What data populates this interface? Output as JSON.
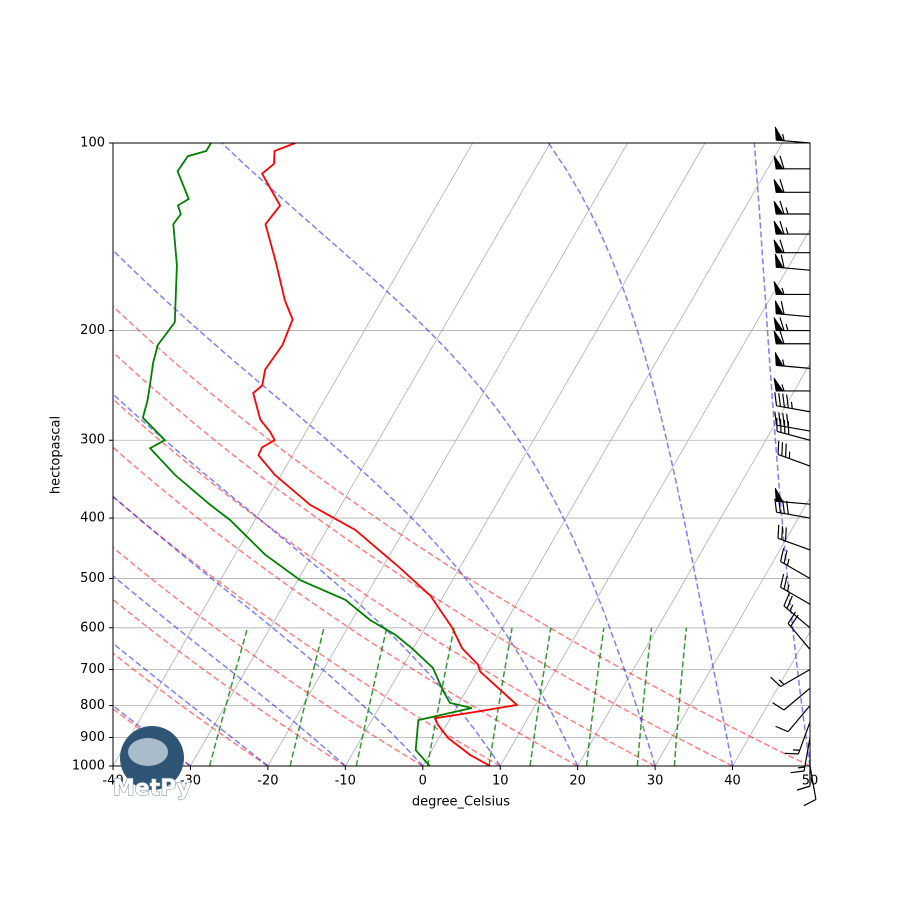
{
  "chart_data": {
    "type": "skewt",
    "xlabel": "degree_Celsius",
    "ylabel": "hectopascal",
    "xlim": [
      -40,
      50
    ],
    "xticks": [
      -40,
      -30,
      -20,
      -10,
      0,
      10,
      20,
      30,
      40,
      50
    ],
    "ylim": [
      1000,
      100
    ],
    "yticks": [
      100,
      200,
      300,
      400,
      500,
      600,
      700,
      800,
      900,
      1000
    ],
    "log_scale": true,
    "grid": true,
    "logo_text": "MetPy",
    "series": [
      {
        "color": "#ff0000",
        "pressure": [
          1000,
          960,
          902,
          859,
          838,
          819,
          798,
          706,
          688,
          647,
          600,
          533,
          481,
          418,
          381,
          341,
          317,
          308,
          300,
          291,
          278,
          252,
          245,
          231,
          211,
          192,
          179,
          155,
          135,
          126,
          112,
          108,
          103,
          100
        ],
        "values": [
          8.7,
          5.3,
          1.2,
          -1.1,
          -2.0,
          2.7,
          7.6,
          0.4,
          -0.4,
          -3.7,
          -6.5,
          -11.7,
          -17.7,
          -26.3,
          -34.0,
          -40.8,
          -44.4,
          -44.5,
          -43.4,
          -44.6,
          -46.8,
          -49.7,
          -49.1,
          -49.9,
          -49.5,
          -50.1,
          -52.5,
          -56.6,
          -60.7,
          -60.2,
          -64.9,
          -64.1,
          -65.0,
          -62.9
        ]
      },
      {
        "color": "#008000",
        "pressure": [
          1000,
          943,
          844,
          807,
          792,
          755,
          696,
          647,
          616,
          583,
          541,
          503,
          458,
          403,
          381,
          341,
          309,
          300,
          289,
          276,
          259,
          245,
          225,
          211,
          194,
          157,
          135,
          130,
          126,
          123,
          111,
          105,
          103,
          100
        ],
        "values": [
          0.9,
          -2.1,
          -4.0,
          2.0,
          -1.2,
          -3.1,
          -6.0,
          -10.2,
          -13.3,
          -17.7,
          -22.4,
          -29.7,
          -36.1,
          -43.2,
          -46.9,
          -53.7,
          -58.9,
          -57.6,
          -59.6,
          -62.1,
          -62.8,
          -63.6,
          -64.9,
          -65.6,
          -65.1,
          -69.1,
          -72.6,
          -72.4,
          -73.4,
          -72.5,
          -76.0,
          -75.8,
          -73.8,
          -73.8
        ]
      }
    ],
    "wind": {
      "pressure": [
        100,
        110,
        120,
        130,
        140,
        150,
        160,
        175,
        190,
        200,
        210,
        230,
        250,
        270,
        290,
        300,
        330,
        380,
        400,
        450,
        500,
        550,
        600,
        650,
        700,
        750,
        800,
        850,
        900,
        950,
        1000
      ],
      "speed": [
        55,
        60,
        60,
        65,
        65,
        60,
        60,
        55,
        60,
        65,
        60,
        55,
        55,
        45,
        40,
        40,
        35,
        50,
        40,
        30,
        25,
        25,
        25,
        20,
        15,
        10,
        10,
        15,
        15,
        10,
        10
      ],
      "direction": [
        275,
        270,
        270,
        270,
        270,
        270,
        275,
        270,
        275,
        270,
        270,
        275,
        270,
        280,
        280,
        285,
        290,
        275,
        280,
        290,
        300,
        300,
        310,
        320,
        240,
        230,
        220,
        200,
        190,
        180,
        170
      ]
    }
  }
}
